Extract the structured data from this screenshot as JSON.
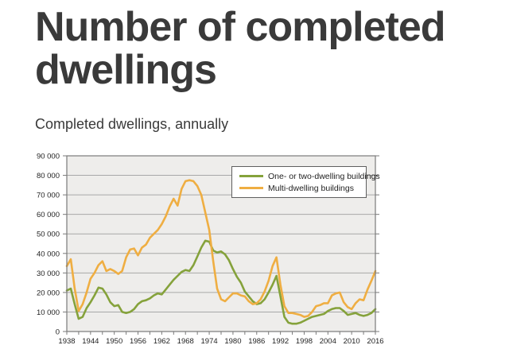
{
  "page": {
    "title": "Number of completed dwellings",
    "subtitle": "Completed dwellings, annually"
  },
  "chart_data": {
    "type": "line",
    "title": "Number of completed dwellings",
    "subtitle": "Completed dwellings, annually",
    "xlabel": "",
    "ylabel": "",
    "grid": true,
    "legend_position": "top-right-inside",
    "ylim": [
      0,
      90000
    ],
    "ytick_step": 10000,
    "ytick_labels": [
      "0",
      "10 000",
      "20 000",
      "30 000",
      "40 000",
      "50 000",
      "60 000",
      "70 000",
      "80 000",
      "90 000"
    ],
    "xtick_labels": [
      "1938",
      "1944",
      "1950",
      "1956",
      "1962",
      "1968",
      "1974",
      "1980",
      "1986",
      "1992",
      "1998",
      "2004",
      "2010",
      "2016"
    ],
    "xtick_minor_step_years": 3,
    "x": [
      1938,
      1939,
      1940,
      1941,
      1942,
      1943,
      1944,
      1945,
      1946,
      1947,
      1948,
      1949,
      1950,
      1951,
      1952,
      1953,
      1954,
      1955,
      1956,
      1957,
      1958,
      1959,
      1960,
      1961,
      1962,
      1963,
      1964,
      1965,
      1966,
      1967,
      1968,
      1969,
      1970,
      1971,
      1972,
      1973,
      1974,
      1975,
      1976,
      1977,
      1978,
      1979,
      1980,
      1981,
      1982,
      1983,
      1984,
      1985,
      1986,
      1987,
      1988,
      1989,
      1990,
      1991,
      1992,
      1993,
      1994,
      1995,
      1996,
      1997,
      1998,
      1999,
      2000,
      2001,
      2002,
      2003,
      2004,
      2005,
      2006,
      2007,
      2008,
      2009,
      2010,
      2011,
      2012,
      2013,
      2014,
      2015,
      2016
    ],
    "series": [
      {
        "name": "One- or two-dwelling buildings",
        "color": "#85A23B",
        "values": [
          21000,
          22000,
          14000,
          6500,
          7500,
          12000,
          15000,
          18500,
          22500,
          22000,
          19000,
          15000,
          13000,
          13500,
          10000,
          9500,
          10000,
          11500,
          14000,
          15500,
          16000,
          17000,
          18500,
          19500,
          19000,
          21500,
          24000,
          26500,
          28500,
          30500,
          31500,
          31000,
          34000,
          38500,
          43000,
          46500,
          46000,
          41500,
          40500,
          41000,
          39500,
          36500,
          32000,
          28000,
          25000,
          20500,
          18000,
          15500,
          14000,
          14500,
          16500,
          20000,
          24000,
          28500,
          18000,
          7500,
          4500,
          4000,
          4000,
          4500,
          5500,
          6500,
          7500,
          8000,
          8500,
          9000,
          10500,
          11500,
          12000,
          12000,
          10500,
          8500,
          9000,
          9500,
          8500,
          8000,
          8500,
          9500,
          11500
        ]
      },
      {
        "name": "Multi-dwelling buildings",
        "color": "#EFAE42",
        "values": [
          33500,
          37000,
          22000,
          10500,
          14000,
          20000,
          27000,
          30000,
          34000,
          36000,
          31000,
          32000,
          31000,
          29500,
          31000,
          38000,
          42000,
          42500,
          39000,
          43000,
          44500,
          48000,
          50000,
          52000,
          55000,
          59000,
          64000,
          68000,
          64500,
          73000,
          77000,
          77500,
          77000,
          74500,
          70000,
          61000,
          52000,
          36000,
          22000,
          16500,
          15500,
          17500,
          19500,
          19500,
          18500,
          18000,
          15500,
          14000,
          14500,
          16500,
          20500,
          26000,
          33500,
          38000,
          24000,
          13000,
          9500,
          9500,
          9000,
          8500,
          7500,
          8000,
          10000,
          13000,
          13500,
          14500,
          14500,
          18500,
          19500,
          20000,
          15000,
          12500,
          11500,
          14500,
          16500,
          16000,
          21500,
          26000,
          31000
        ]
      }
    ],
    "style": {
      "plot_bg": "#EEEDEB",
      "grid_color": "#A8A8A8",
      "border_color": "#7A7A7A",
      "axis_text_color": "#1F1F1F",
      "title_color": "#3A3A3A"
    }
  }
}
